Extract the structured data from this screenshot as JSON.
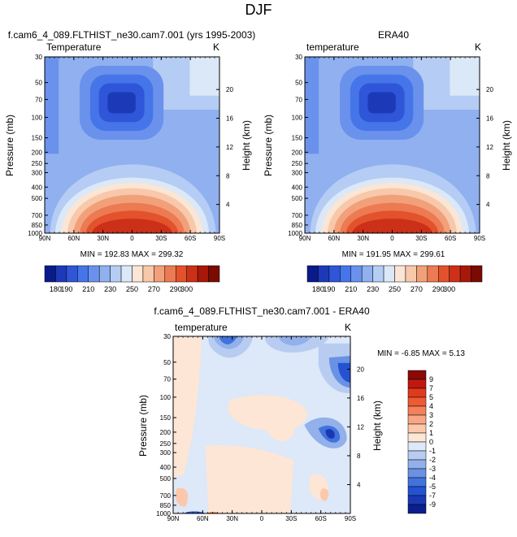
{
  "page": {
    "title": "DJF"
  },
  "panels": [
    {
      "id": "model",
      "caption": "f.cam6_4_089.FLTHIST_ne30.cam7.001 (yrs 1995-2003)",
      "left_label": "Temperature",
      "unit": "K",
      "minmax": "MIN = 192.83  MAX = 299.32"
    },
    {
      "id": "obs",
      "caption": "ERA40",
      "left_label": "temperature",
      "unit": "K",
      "minmax": "MIN = 191.95  MAX = 299.61"
    },
    {
      "id": "diff",
      "caption": "f.cam6_4_089.FLTHIST_ne30.cam7.001 - ERA40",
      "left_label": "temperature",
      "unit": "K",
      "minmax": "MIN =  -6.85  MAX =   5.13"
    }
  ],
  "axes": {
    "ylabel": "Pressure (mb)",
    "y2label": "Height (km)",
    "x_ticks": [
      "90N",
      "60N",
      "30N",
      "0",
      "30S",
      "60S",
      "90S"
    ],
    "p_ticks": [
      "30",
      "50",
      "70",
      "100",
      "150",
      "200",
      "250",
      "300",
      "400",
      "500",
      "700",
      "850",
      "1000"
    ],
    "h_ticks": [
      "20",
      "16",
      "12",
      "8",
      "4"
    ]
  },
  "colorbars": {
    "abs": {
      "labels": [
        "180",
        "190",
        "210",
        "230",
        "250",
        "270",
        "290",
        "300"
      ],
      "colors": [
        "#0a1a8a",
        "#1c3ab8",
        "#2f55d8",
        "#4575e8",
        "#6a92ec",
        "#90b0f0",
        "#b5cdf4",
        "#dbe8f8",
        "#fbe5d4",
        "#f8c8aa",
        "#f2a07a",
        "#ec7a52",
        "#e2522c",
        "#cc3018",
        "#a81808",
        "#7a0a02"
      ]
    },
    "diff": {
      "labels": [
        "9",
        "7",
        "5",
        "4",
        "3",
        "2",
        "1",
        "0",
        "-1",
        "-2",
        "-3",
        "-4",
        "-5",
        "-7",
        "-9"
      ],
      "colors": [
        "#8a0a08",
        "#c01810",
        "#e03a1c",
        "#ee5a34",
        "#f4805c",
        "#f8a684",
        "#fbc8ac",
        "#fde6d6",
        "#dde8f8",
        "#b8ccf2",
        "#92b0ea",
        "#6a92e4",
        "#4272dc",
        "#2452d2",
        "#1a38b4",
        "#0c1e8c"
      ]
    }
  },
  "chart_data": [
    {
      "panel": "model",
      "type": "heatmap",
      "title": "f.cam6_4_089.FLTHIST_ne30.cam7.001 (yrs 1995-2003)",
      "xlabel": "",
      "ylabel": "Pressure (mb)",
      "y2label": "Height (km)",
      "x": [
        "90N",
        "60N",
        "30N",
        "0",
        "30S",
        "60S",
        "90S"
      ],
      "y": [
        30,
        50,
        70,
        100,
        150,
        200,
        250,
        300,
        400,
        500,
        700,
        850,
        1000
      ],
      "y_scale": "log",
      "unit": "K",
      "min": 192.83,
      "max": 299.32
    },
    {
      "panel": "obs",
      "type": "heatmap",
      "title": "ERA40",
      "xlabel": "",
      "ylabel": "Pressure (mb)",
      "y2label": "Height (km)",
      "x": [
        "90N",
        "60N",
        "30N",
        "0",
        "30S",
        "60S",
        "90S"
      ],
      "y": [
        30,
        50,
        70,
        100,
        150,
        200,
        250,
        300,
        400,
        500,
        700,
        850,
        1000
      ],
      "y_scale": "log",
      "unit": "K",
      "min": 191.95,
      "max": 299.61
    },
    {
      "panel": "diff",
      "type": "heatmap",
      "title": "f.cam6_4_089.FLTHIST_ne30.cam7.001 - ERA40",
      "xlabel": "",
      "ylabel": "Pressure (mb)",
      "y2label": "Height (km)",
      "x": [
        "90N",
        "60N",
        "30N",
        "0",
        "30S",
        "60S",
        "90S"
      ],
      "y": [
        30,
        50,
        70,
        100,
        150,
        200,
        250,
        300,
        400,
        500,
        700,
        850,
        1000
      ],
      "y_scale": "log",
      "unit": "K",
      "min": -6.85,
      "max": 5.13
    }
  ]
}
